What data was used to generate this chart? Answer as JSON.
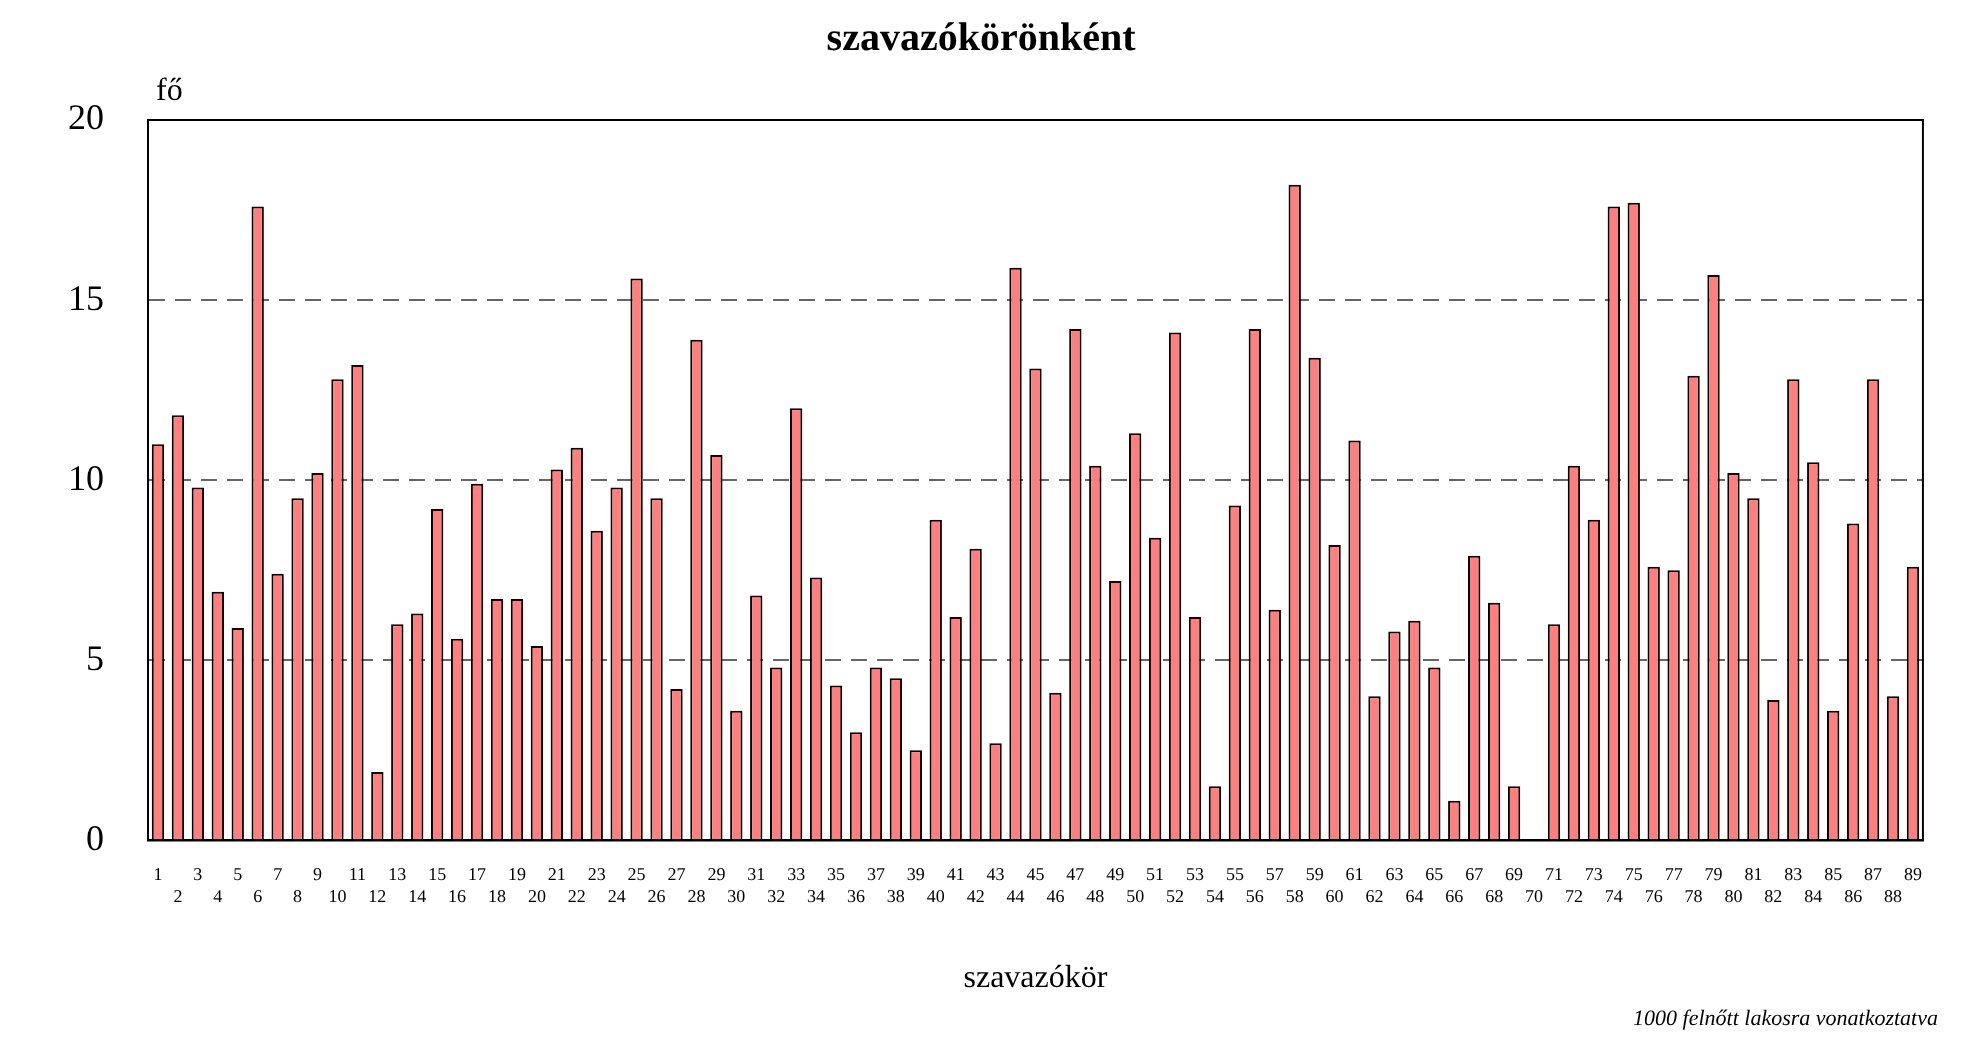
{
  "chart_data": {
    "type": "bar",
    "title": "szavazókörönként",
    "xlabel": "szavazókör",
    "ylabel": "fő",
    "annotations": [
      "1000 felnőtt lakosra vonatkoztatva"
    ],
    "categories": [
      "1",
      "2",
      "3",
      "4",
      "5",
      "6",
      "7",
      "8",
      "9",
      "10",
      "11",
      "12",
      "13",
      "14",
      "15",
      "16",
      "17",
      "18",
      "19",
      "20",
      "21",
      "22",
      "23",
      "24",
      "25",
      "26",
      "27",
      "28",
      "29",
      "30",
      "31",
      "32",
      "33",
      "34",
      "35",
      "36",
      "37",
      "38",
      "39",
      "40",
      "41",
      "42",
      "43",
      "44",
      "45",
      "46",
      "47",
      "48",
      "49",
      "50",
      "51",
      "52",
      "53",
      "54",
      "55",
      "56",
      "57",
      "58",
      "59",
      "60",
      "61",
      "62",
      "63",
      "64",
      "65",
      "66",
      "67",
      "68",
      "69",
      "70",
      "71",
      "72",
      "73",
      "74",
      "75",
      "76",
      "77",
      "78",
      "79",
      "80",
      "81",
      "82",
      "83",
      "84",
      "85",
      "86",
      "87",
      "88",
      "89"
    ],
    "values": [
      11.0,
      11.8,
      9.8,
      6.9,
      5.9,
      17.6,
      7.4,
      9.5,
      10.2,
      12.8,
      13.2,
      1.9,
      6.0,
      6.3,
      9.2,
      5.6,
      9.9,
      6.7,
      6.7,
      5.4,
      10.3,
      10.9,
      8.6,
      9.8,
      15.6,
      9.5,
      4.2,
      13.9,
      10.7,
      3.6,
      6.8,
      4.8,
      12.0,
      7.3,
      4.3,
      3.0,
      4.8,
      4.5,
      2.5,
      8.9,
      6.2,
      8.1,
      2.7,
      15.9,
      13.1,
      4.1,
      14.2,
      10.4,
      7.2,
      11.3,
      8.4,
      14.1,
      6.2,
      1.5,
      9.3,
      14.2,
      6.4,
      18.2,
      13.4,
      8.2,
      11.1,
      4.0,
      5.8,
      6.1,
      4.8,
      1.1,
      7.9,
      6.6,
      1.5,
      0,
      6.0,
      10.4,
      8.9,
      17.6,
      17.7,
      7.6,
      7.5,
      12.9,
      15.7,
      10.2,
      9.5,
      3.9,
      12.8,
      10.5,
      3.6,
      8.8,
      12.8,
      4.0,
      7.6
    ],
    "color": "#ff7f7f",
    "ylim": [
      0,
      20
    ],
    "yticks": [
      0,
      5,
      10,
      15,
      20
    ],
    "grid": "y",
    "legend": false
  }
}
